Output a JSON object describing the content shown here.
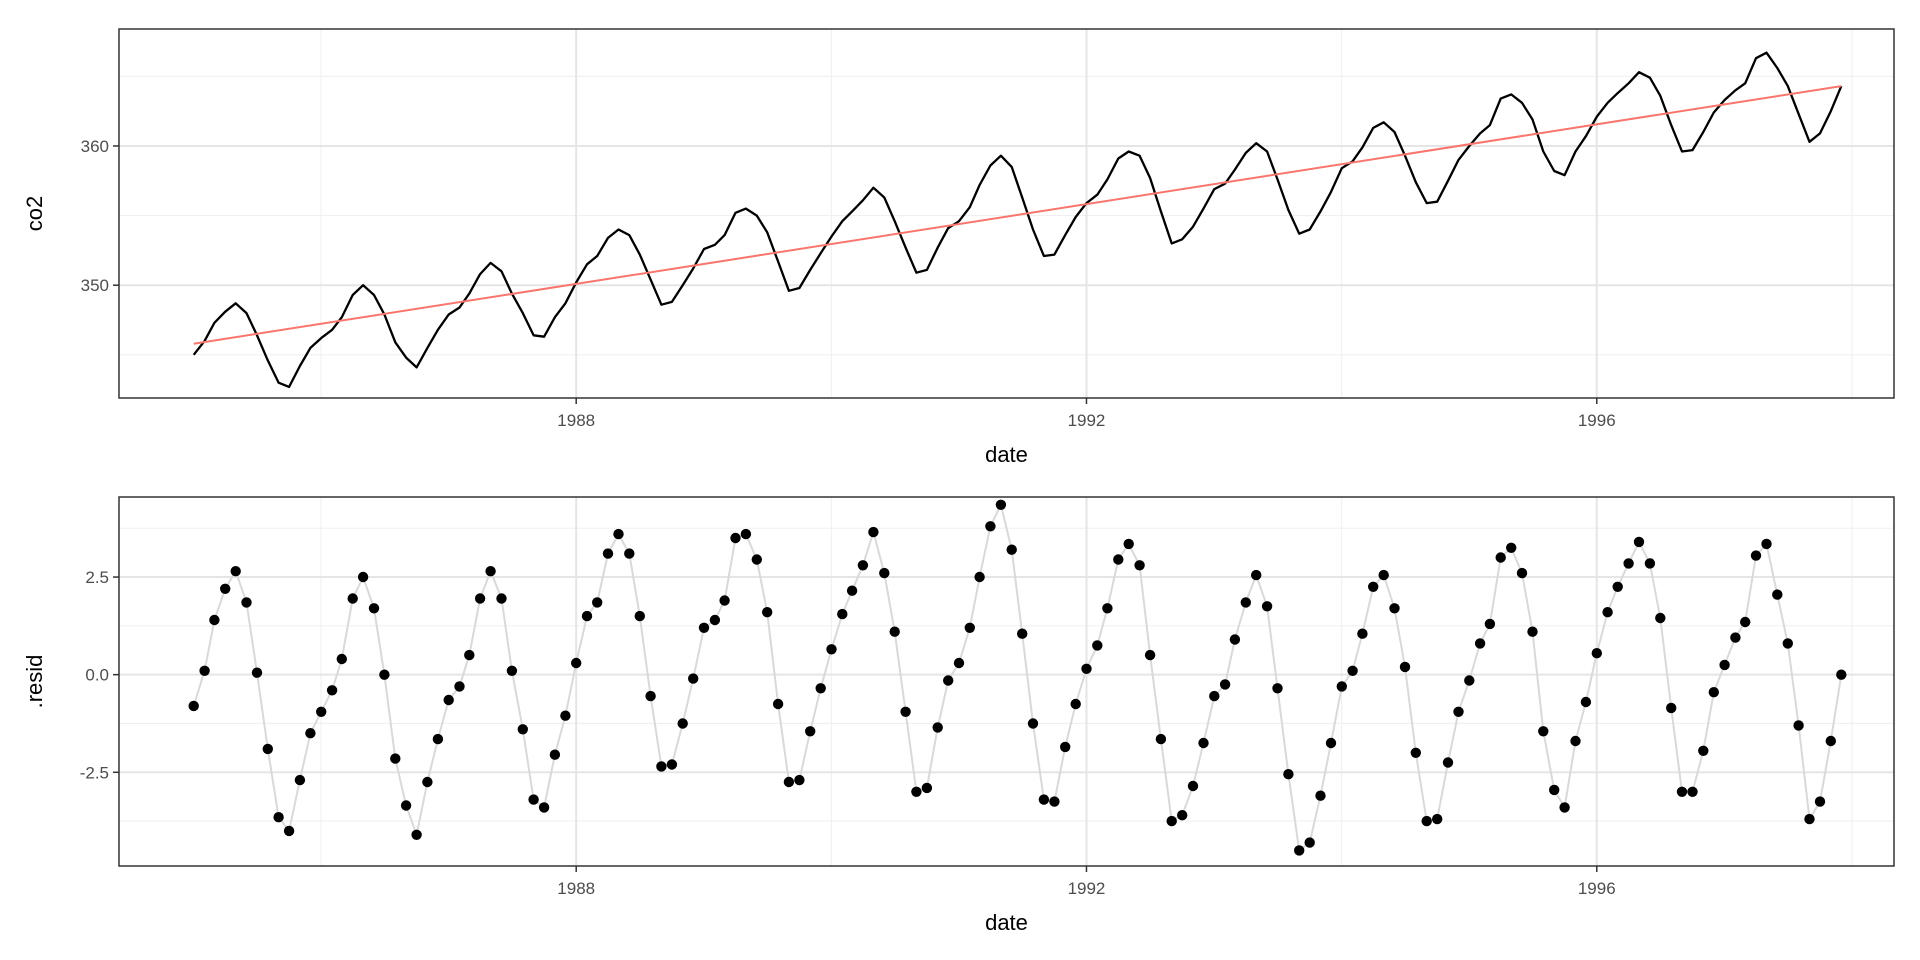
{
  "chart_data": [
    {
      "type": "line",
      "xlabel": "date",
      "ylabel": "co2",
      "xlim": [
        "1984-06-01",
        "1998-05-01"
      ],
      "ylim": [
        341.9,
        368.4
      ],
      "x_ticks": [
        {
          "value": "1988-01-01",
          "label": "1988"
        },
        {
          "value": "1992-01-01",
          "label": "1992"
        },
        {
          "value": "1996-01-01",
          "label": "1996"
        }
      ],
      "y_ticks": [
        {
          "value": 350,
          "label": "350"
        },
        {
          "value": 360,
          "label": "360"
        }
      ],
      "grid": true,
      "x_start": "1985-01-01",
      "x_end": "1997-12-01",
      "frequency": "monthly",
      "series": [
        {
          "color": "#000000",
          "values": [
            345.0,
            346.0,
            347.3,
            348.1,
            348.7,
            348.0,
            346.4,
            344.6,
            343.0,
            342.7,
            344.2,
            345.5,
            346.2,
            346.8,
            347.7,
            349.3,
            350.0,
            349.3,
            347.9,
            345.9,
            344.8,
            344.1,
            345.5,
            346.8,
            347.9,
            348.4,
            349.4,
            350.8,
            351.6,
            351.0,
            349.4,
            348.0,
            346.4,
            346.3,
            347.7,
            348.7,
            350.2,
            351.5,
            352.1,
            353.4,
            354.0,
            353.6,
            352.2,
            350.4,
            348.6,
            348.8,
            350.0,
            351.2,
            352.6,
            352.9,
            353.6,
            355.2,
            355.5,
            355.0,
            353.8,
            351.7,
            349.6,
            349.8,
            351.1,
            352.3,
            353.5,
            354.6,
            355.3,
            356.1,
            357.0,
            356.3,
            354.6,
            352.7,
            350.9,
            351.1,
            352.7,
            354.1,
            354.6,
            355.6,
            357.2,
            358.6,
            359.3,
            358.5,
            356.3,
            354.0,
            352.1,
            352.2,
            353.6,
            354.9,
            355.9,
            356.5,
            357.6,
            359.1,
            359.6,
            359.3,
            357.7,
            355.3,
            353.0,
            353.3,
            354.2,
            355.5,
            356.9,
            357.3,
            358.3,
            359.5,
            360.2,
            359.6,
            357.6,
            355.4,
            353.7,
            354.0,
            355.3,
            356.7,
            358.4,
            358.9,
            359.9,
            361.3,
            361.7,
            361.0,
            359.3,
            357.4,
            355.9,
            356.0,
            357.5,
            359.0,
            360.0,
            360.9,
            361.5,
            363.4,
            363.7,
            363.1,
            361.9,
            359.6,
            358.2,
            357.9,
            359.6,
            360.7,
            362.1,
            363.1,
            363.8,
            364.5,
            365.3,
            364.9,
            363.6,
            361.5,
            359.6,
            359.7,
            361.0,
            362.4,
            363.3,
            364.0,
            364.5,
            366.3,
            366.7,
            365.6,
            364.3,
            362.3,
            360.3,
            360.9,
            362.5,
            364.3
          ]
        },
        {
          "color": "#f8766d",
          "values": [
            345.8,
            364.3
          ]
        }
      ]
    },
    {
      "type": "scatter",
      "xlabel": "date",
      "ylabel": ".resid",
      "xlim": [
        "1984-06-01",
        "1998-05-01"
      ],
      "ylim": [
        -4.9,
        4.55
      ],
      "x_ticks": [
        {
          "value": "1988-01-01",
          "label": "1988"
        },
        {
          "value": "1992-01-01",
          "label": "1992"
        },
        {
          "value": "1996-01-01",
          "label": "1996"
        }
      ],
      "y_ticks": [
        {
          "value": -2.5,
          "label": "-2.5"
        },
        {
          "value": 0,
          "label": "0.0"
        },
        {
          "value": 2.5,
          "label": "2.5"
        }
      ],
      "grid": true,
      "x_start": "1985-01-01",
      "x_end": "1997-12-01",
      "frequency": "monthly",
      "series": [
        {
          "color": "#000000",
          "line_color": "#d9d9d9",
          "values": [
            -0.8,
            0.1,
            1.4,
            2.2,
            2.65,
            1.85,
            0.05,
            -1.9,
            -3.65,
            -4.0,
            -2.7,
            -1.5,
            -0.95,
            -0.4,
            0.4,
            1.95,
            2.5,
            1.7,
            0.0,
            -2.15,
            -3.35,
            -4.1,
            -2.75,
            -1.65,
            -0.65,
            -0.3,
            0.5,
            1.95,
            2.65,
            1.95,
            0.1,
            -1.4,
            -3.2,
            -3.4,
            -2.05,
            -1.05,
            0.3,
            1.5,
            1.85,
            3.1,
            3.6,
            3.1,
            1.5,
            -0.55,
            -2.35,
            -2.3,
            -1.25,
            -0.1,
            1.2,
            1.4,
            1.9,
            3.5,
            3.6,
            2.95,
            1.6,
            -0.75,
            -2.75,
            -2.7,
            -1.45,
            -0.35,
            0.65,
            1.55,
            2.15,
            2.8,
            3.65,
            2.6,
            1.1,
            -0.95,
            -3.0,
            -2.9,
            -1.35,
            -0.15,
            0.3,
            1.2,
            2.5,
            3.8,
            4.35,
            3.2,
            1.05,
            -1.25,
            -3.2,
            -3.25,
            -1.85,
            -0.75,
            0.15,
            0.75,
            1.7,
            2.95,
            3.35,
            2.8,
            0.5,
            -1.65,
            -3.75,
            -3.6,
            -2.85,
            -1.75,
            -0.55,
            -0.25,
            0.9,
            1.85,
            2.55,
            1.75,
            -0.35,
            -2.55,
            -4.5,
            -4.3,
            -3.1,
            -1.75,
            -0.3,
            0.1,
            1.05,
            2.25,
            2.55,
            1.7,
            0.2,
            -2.0,
            -3.75,
            -3.7,
            -2.25,
            -0.95,
            -0.15,
            0.8,
            1.3,
            3.0,
            3.25,
            2.6,
            1.1,
            -1.45,
            -2.95,
            -3.4,
            -1.7,
            -0.7,
            0.55,
            1.6,
            2.25,
            2.85,
            3.4,
            2.85,
            1.45,
            -0.85,
            -3.0,
            -3.0,
            -1.95,
            -0.45,
            0.25,
            0.95,
            1.35,
            3.05,
            3.35,
            2.05,
            0.8,
            -1.3,
            -3.7,
            -3.25,
            -1.7,
            0.0
          ]
        }
      ]
    }
  ]
}
